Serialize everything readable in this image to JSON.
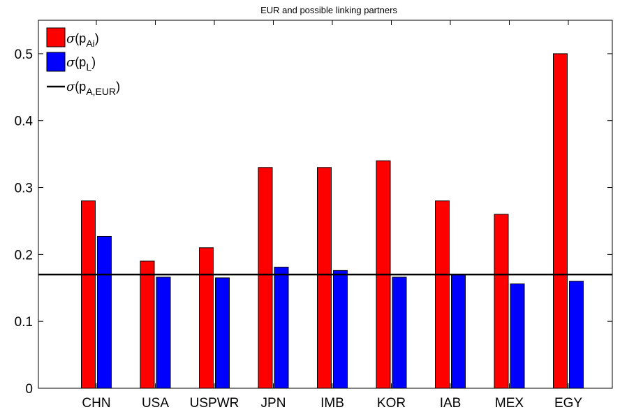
{
  "chart_data": {
    "type": "bar",
    "title": "EUR and possible linking partners",
    "xlabel": "",
    "ylabel": "",
    "categories": [
      "CHN",
      "USA",
      "USPWR",
      "JPN",
      "IMB",
      "KOR",
      "IAB",
      "MEX",
      "EGY"
    ],
    "series": [
      {
        "name_parts": {
          "sym": "σ",
          "base": "(p",
          "sub": "Ai",
          "close": ")"
        },
        "color": "#ff0000",
        "values": [
          0.28,
          0.19,
          0.21,
          0.33,
          0.33,
          0.34,
          0.28,
          0.26,
          0.5
        ]
      },
      {
        "name_parts": {
          "sym": "σ",
          "base": "(p",
          "sub": "L",
          "close": ")"
        },
        "color": "#0000ff",
        "values": [
          0.227,
          0.166,
          0.165,
          0.181,
          0.176,
          0.166,
          0.17,
          0.156,
          0.16
        ]
      }
    ],
    "reference_line": {
      "name_parts": {
        "sym": "σ",
        "base": "(p",
        "sub": "A,EUR",
        "close": ")"
      },
      "value": 0.17,
      "color": "#000000"
    },
    "ylim": [
      0,
      0.55
    ],
    "yticks": [
      0,
      0.1,
      0.2,
      0.3,
      0.4,
      0.5
    ],
    "ytick_labels": [
      "0",
      "0.1",
      "0.2",
      "0.3",
      "0.4",
      "0.5"
    ],
    "legend_position": "top-left",
    "grid": false
  }
}
